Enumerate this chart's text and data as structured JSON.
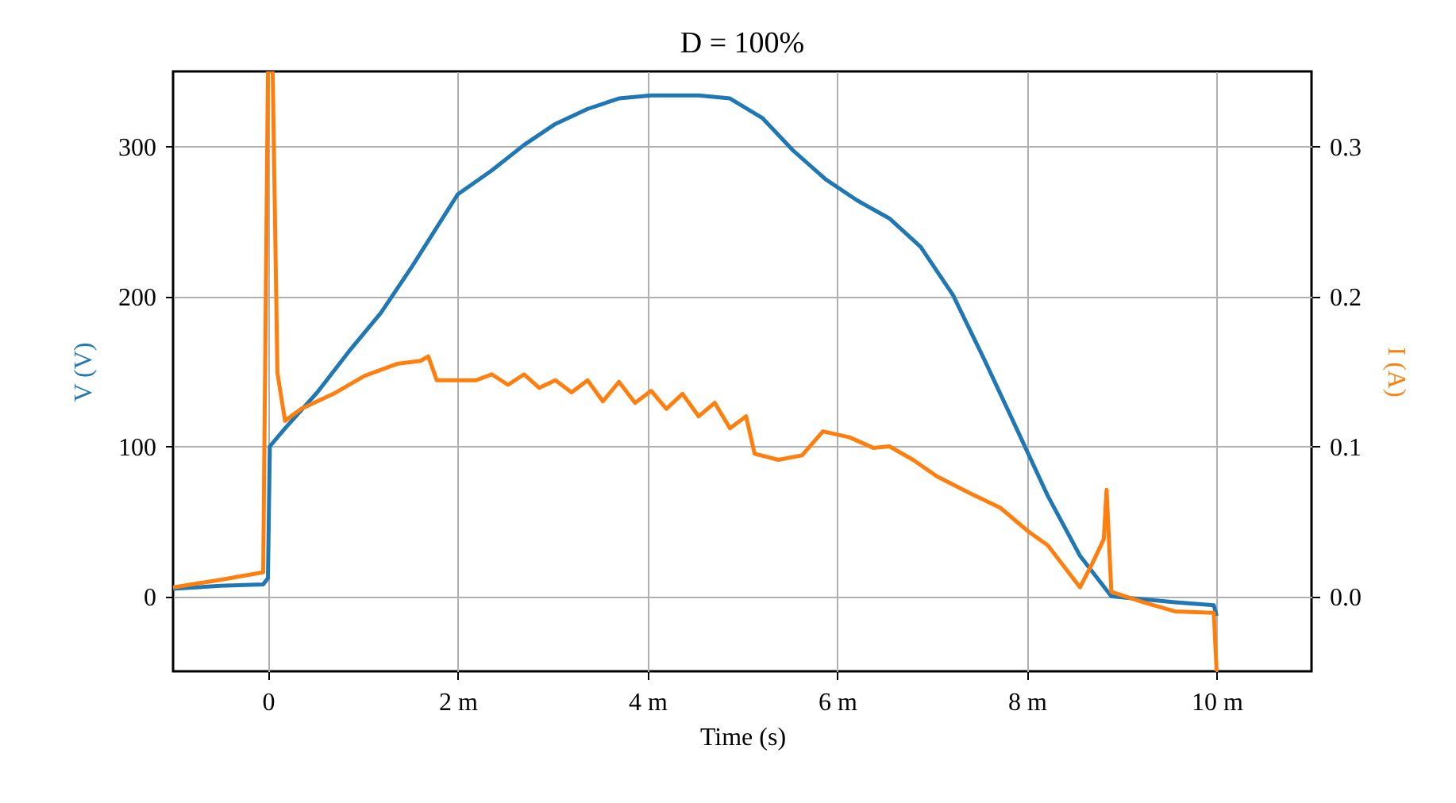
{
  "chart_data": {
    "type": "line",
    "title": "D = 100%",
    "xlabel": "Time (s)",
    "ylabel": "V (V)",
    "y2label": "I (A)",
    "xlim": [
      -1,
      11
    ],
    "xticks": [
      0,
      {
        "value": 2,
        "label": "2 m"
      },
      {
        "value": 4,
        "label": "4 m"
      },
      {
        "value": 6,
        "label": "6 m"
      },
      {
        "value": 8,
        "label": "8 m"
      },
      {
        "value": 10,
        "label": "10 m"
      }
    ],
    "ylim": [
      -50,
      350
    ],
    "yticks": [
      0,
      100,
      200,
      300
    ],
    "y2lim": [
      -0.05,
      0.35
    ],
    "y2ticks": [
      {
        "value": 0,
        "label": "0.0"
      },
      0.1,
      0.2,
      0.3
    ],
    "grid": true,
    "line_style": "solid",
    "series": [
      {
        "color": "#1f77b4",
        "x": [
          -1.0,
          -0.5,
          -0.05,
          0,
          0.02,
          0.18,
          0.52,
          0.85,
          1.19,
          1.52,
          2.0,
          2.36,
          2.7,
          3.03,
          3.37,
          3.7,
          4.04,
          4.54,
          4.87,
          5.21,
          5.54,
          5.88,
          6.21,
          6.55,
          6.88,
          7.22,
          7.55,
          7.89,
          8.22,
          8.56,
          8.89,
          9.23,
          9.56,
          9.97,
          10.0
        ],
        "values": [
          5,
          7,
          8,
          12,
          100,
          112,
          136,
          163,
          189,
          220,
          268,
          284,
          301,
          315,
          325,
          332,
          334,
          334,
          332,
          319,
          297,
          278,
          264,
          252,
          233,
          201,
          158,
          112,
          67,
          27,
          0,
          -2,
          -4,
          -6,
          -13
        ]
      },
      {
        "color": "#ff7f0e",
        "axis": "y2",
        "x": [
          -1.0,
          -0.5,
          -0.05,
          0,
          0.05,
          0.1,
          0.18,
          0.35,
          0.69,
          1.02,
          1.36,
          1.61,
          1.69,
          1.78,
          2.0,
          2.19,
          2.36,
          2.53,
          2.7,
          2.86,
          3.03,
          3.2,
          3.37,
          3.53,
          3.7,
          3.87,
          4.04,
          4.2,
          4.37,
          4.54,
          4.71,
          4.87,
          5.04,
          5.13,
          5.38,
          5.63,
          5.85,
          6.13,
          6.38,
          6.55,
          6.8,
          7.05,
          7.39,
          7.72,
          8.02,
          8.22,
          8.56,
          8.69,
          8.81,
          8.84,
          8.89,
          9.23,
          9.56,
          9.97,
          10.0
        ],
        "values": [
          0.006,
          0.011,
          0.016,
          0.35,
          0.35,
          0.149,
          0.117,
          0.125,
          0.135,
          0.147,
          0.155,
          0.157,
          0.16,
          0.144,
          0.144,
          0.144,
          0.148,
          0.141,
          0.148,
          0.139,
          0.144,
          0.136,
          0.144,
          0.13,
          0.143,
          0.129,
          0.137,
          0.125,
          0.135,
          0.12,
          0.129,
          0.112,
          0.12,
          0.095,
          0.091,
          0.094,
          0.11,
          0.106,
          0.099,
          0.1,
          0.091,
          0.08,
          0.069,
          0.059,
          0.043,
          0.034,
          0.006,
          0.022,
          0.038,
          0.071,
          0.003,
          -0.004,
          -0.01,
          -0.011,
          -0.05
        ]
      }
    ]
  }
}
